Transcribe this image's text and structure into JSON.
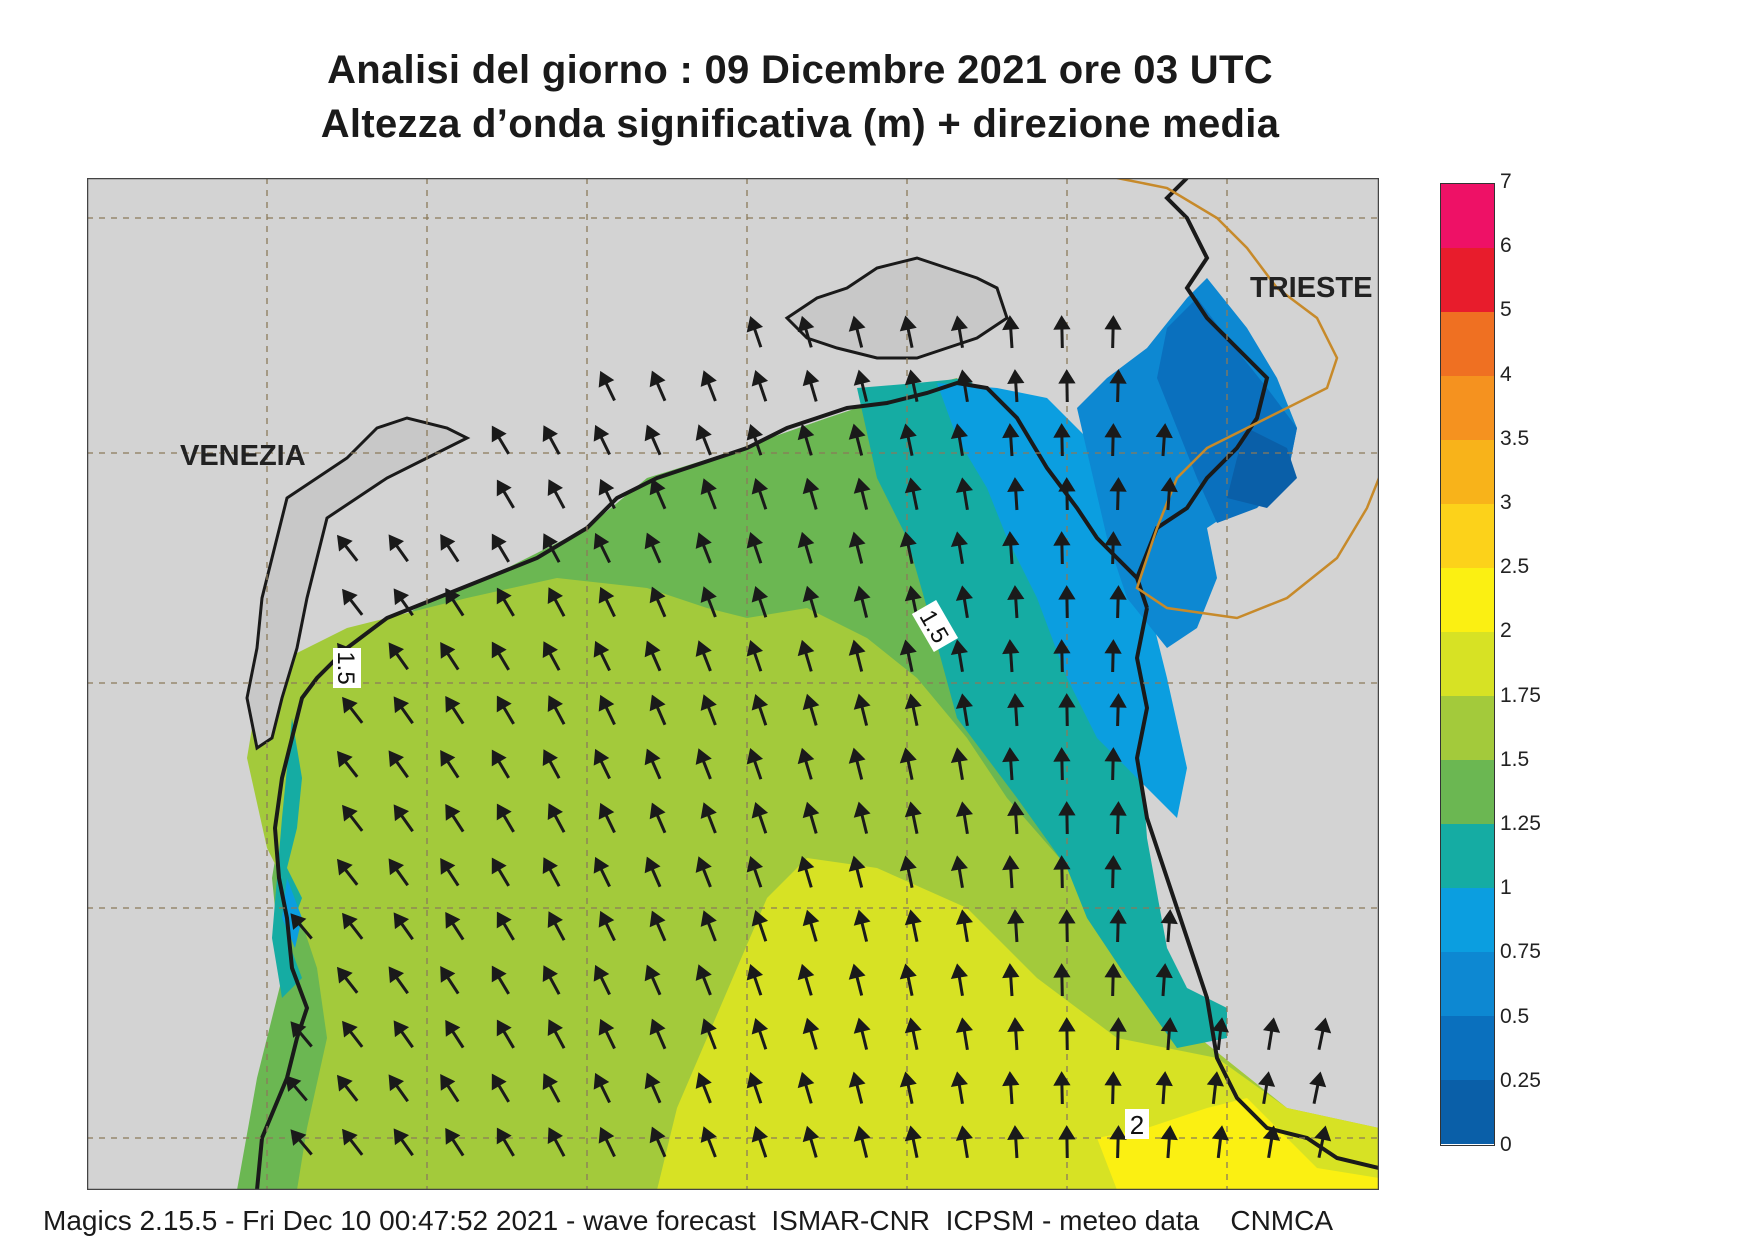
{
  "title_line1": "Analisi del giorno :  09 Dicembre  2021   ore 03 UTC",
  "title_line2": "Altezza d’onda significativa (m) + direzione media",
  "map": {
    "cities": [
      {
        "name": "VENEZIA"
      },
      {
        "name": "TRIESTE"
      }
    ],
    "contour_labels": [
      "1.5",
      "1.5",
      "2"
    ],
    "arrow_direction": "north-west"
  },
  "colorbar": {
    "ticks": [
      "7",
      "6",
      "5",
      "4",
      "3.5",
      "3",
      "2.5",
      "2",
      "1.75",
      "1.5",
      "1.25",
      "1",
      "0.75",
      "0.5",
      "0.25",
      "0"
    ],
    "colors": [
      "#ee1166",
      "#e81c2c",
      "#ef7022",
      "#f5921f",
      "#f8b31a",
      "#fcd21a",
      "#fbf012",
      "#d7e224",
      "#a3ca3b",
      "#6bb752",
      "#15aca3",
      "#0b9ee0",
      "#0d88d2",
      "#0a70be",
      "#0a5fa8"
    ]
  },
  "footer": "Magics 2.15.5 - Fri Dec 10 00:47:52 2021 - wave forecast  ISMAR-CNR  ICPSM - meteo data    CNMCA"
}
